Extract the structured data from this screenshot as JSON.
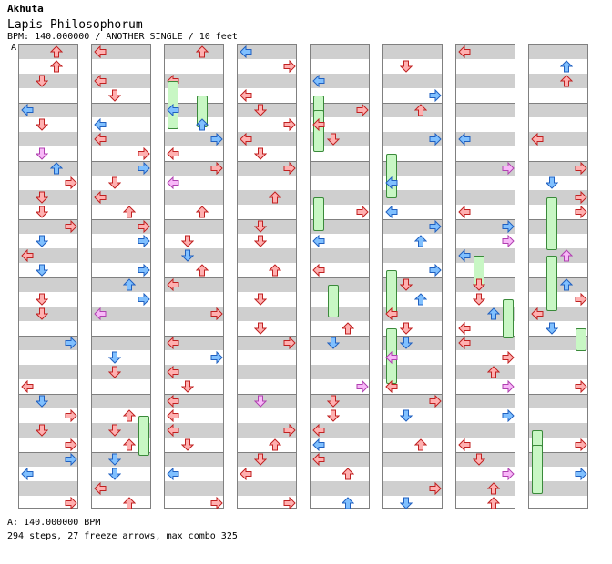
{
  "header": {
    "author": "Akhuta",
    "title": "Lapis Philosophorum",
    "meta": "BPM: 140.000000 / ANOTHER SINGLE / 10 feet",
    "section_label": "A"
  },
  "footer": {
    "bpm_line": "A: 140.000000 BPM",
    "stats_line": "294 steps, 27 freeze arrows, max combo 325"
  },
  "colors": {
    "red_fill": "#ffb0b0",
    "red_stroke": "#c02020",
    "blue_fill": "#80c0ff",
    "blue_stroke": "#2060c0",
    "pink_fill": "#f8b8f8",
    "pink_stroke": "#b040b0",
    "freeze_fill": "#c8f7c4",
    "band": "#cfcfcf"
  },
  "chart": {
    "bpm": 140,
    "difficulty": "ANOTHER",
    "mode": "SINGLE",
    "feet": 10,
    "steps": 294,
    "freeze_arrows": 27,
    "max_combo": 325
  }
}
